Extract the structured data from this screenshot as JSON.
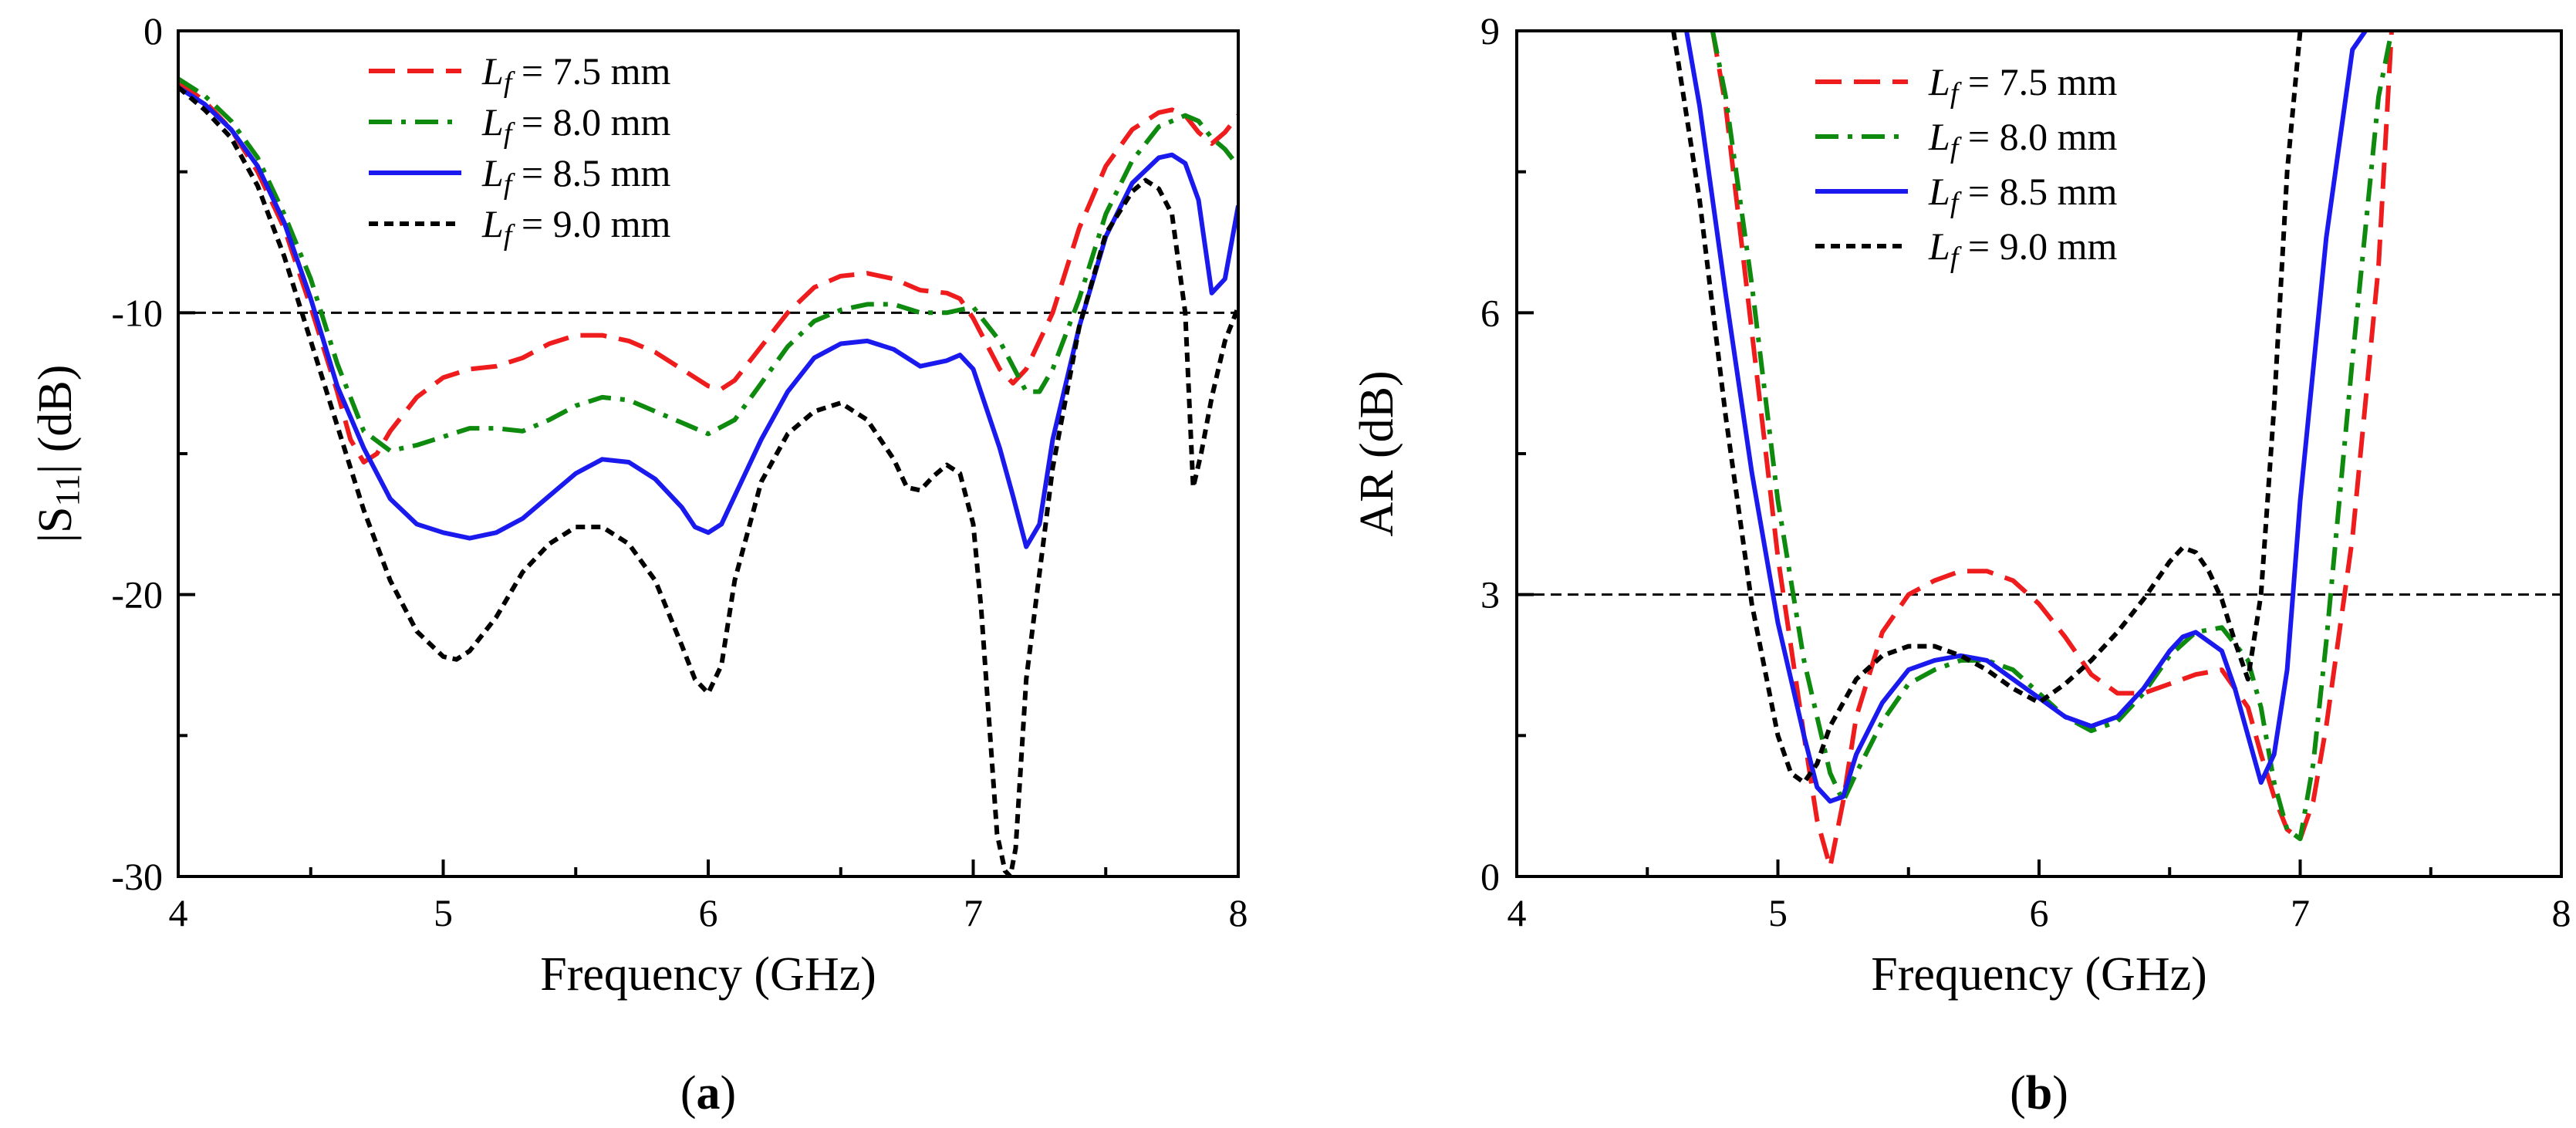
{
  "chart_data": [
    {
      "type": "line",
      "panel_label": "(a)",
      "panel_label_parts": [
        "(",
        "a",
        ")"
      ],
      "xlabel": "Frequency (GHz)",
      "ylabel": "|S11| (dB)",
      "ylabel_parts": [
        "|S",
        "11",
        "| (dB)"
      ],
      "xlim": [
        4,
        8
      ],
      "ylim": [
        -30,
        0
      ],
      "xticks": [
        4,
        5,
        6,
        7,
        8
      ],
      "yticks": [
        -30,
        -20,
        -10,
        0
      ],
      "xtick_labels": [
        "4",
        "5",
        "6",
        "7",
        "8"
      ],
      "ytick_labels": [
        "-30",
        "-20",
        "-10",
        "0"
      ],
      "reference_line": {
        "y": -10,
        "style": "dashed",
        "color": "#000000"
      },
      "legend_position": "top-center",
      "series": [
        {
          "name": "Lf = 7.5 mm",
          "legend": [
            "L",
            "f",
            " = 7.5 mm"
          ],
          "color": "#ee1c1c",
          "dash": "dashed",
          "x": [
            4.0,
            4.1,
            4.2,
            4.3,
            4.4,
            4.5,
            4.6,
            4.65,
            4.7,
            4.75,
            4.8,
            4.9,
            5.0,
            5.1,
            5.2,
            5.3,
            5.4,
            5.5,
            5.6,
            5.7,
            5.8,
            5.9,
            6.0,
            6.05,
            6.1,
            6.2,
            6.3,
            6.4,
            6.5,
            6.6,
            6.7,
            6.8,
            6.9,
            6.95,
            7.0,
            7.1,
            7.15,
            7.2,
            7.3,
            7.4,
            7.5,
            7.6,
            7.7,
            7.75,
            7.8,
            7.85,
            7.9,
            7.95,
            8.0
          ],
          "y": [
            -1.8,
            -2.5,
            -3.5,
            -5.0,
            -7.0,
            -9.8,
            -12.8,
            -14.5,
            -15.3,
            -15.0,
            -14.2,
            -13.0,
            -12.3,
            -12.0,
            -11.9,
            -11.6,
            -11.1,
            -10.8,
            -10.8,
            -11.0,
            -11.4,
            -12.0,
            -12.6,
            -12.7,
            -12.4,
            -11.2,
            -10.0,
            -9.1,
            -8.7,
            -8.6,
            -8.8,
            -9.2,
            -9.3,
            -9.5,
            -10.2,
            -12.0,
            -12.5,
            -12.0,
            -10.0,
            -7.0,
            -4.8,
            -3.5,
            -2.9,
            -2.8,
            -3.0,
            -3.6,
            -4.0,
            -3.6,
            -3.0
          ]
        },
        {
          "name": "Lf = 8.0 mm",
          "legend": [
            "L",
            "f",
            " = 8.0 mm"
          ],
          "color": "#0e8a0e",
          "dash": "dashdot",
          "x": [
            4.0,
            4.1,
            4.2,
            4.3,
            4.4,
            4.5,
            4.6,
            4.7,
            4.8,
            4.9,
            5.0,
            5.1,
            5.2,
            5.3,
            5.4,
            5.5,
            5.6,
            5.7,
            5.8,
            5.9,
            6.0,
            6.1,
            6.2,
            6.3,
            6.4,
            6.5,
            6.6,
            6.7,
            6.8,
            6.9,
            7.0,
            7.1,
            7.2,
            7.25,
            7.3,
            7.4,
            7.5,
            7.6,
            7.7,
            7.8,
            7.85,
            7.9,
            7.95,
            8.0
          ],
          "y": [
            -1.7,
            -2.3,
            -3.2,
            -4.5,
            -6.5,
            -8.8,
            -11.8,
            -14.2,
            -14.9,
            -14.7,
            -14.4,
            -14.1,
            -14.1,
            -14.2,
            -13.8,
            -13.3,
            -13.0,
            -13.1,
            -13.5,
            -13.9,
            -14.3,
            -13.8,
            -12.5,
            -11.2,
            -10.3,
            -9.9,
            -9.7,
            -9.7,
            -10.0,
            -10.0,
            -9.8,
            -11.0,
            -12.8,
            -12.8,
            -12.0,
            -9.5,
            -6.5,
            -4.6,
            -3.4,
            -3.0,
            -3.2,
            -3.8,
            -4.2,
            -4.8
          ]
        },
        {
          "name": "Lf = 8.5 mm",
          "legend": [
            "L",
            "f",
            " = 8.5 mm"
          ],
          "color": "#1a1aee",
          "dash": "solid",
          "x": [
            4.0,
            4.1,
            4.2,
            4.3,
            4.4,
            4.5,
            4.6,
            4.7,
            4.8,
            4.9,
            5.0,
            5.1,
            5.2,
            5.3,
            5.4,
            5.5,
            5.6,
            5.7,
            5.8,
            5.9,
            5.95,
            6.0,
            6.05,
            6.1,
            6.2,
            6.3,
            6.4,
            6.5,
            6.6,
            6.7,
            6.8,
            6.9,
            6.95,
            7.0,
            7.1,
            7.15,
            7.2,
            7.25,
            7.3,
            7.4,
            7.5,
            7.6,
            7.7,
            7.75,
            7.8,
            7.85,
            7.9,
            7.95,
            8.0
          ],
          "y": [
            -2.0,
            -2.6,
            -3.5,
            -4.8,
            -6.8,
            -9.5,
            -12.6,
            -14.8,
            -16.6,
            -17.5,
            -17.8,
            -18.0,
            -17.8,
            -17.3,
            -16.5,
            -15.7,
            -15.2,
            -15.3,
            -15.9,
            -16.9,
            -17.6,
            -17.8,
            -17.5,
            -16.5,
            -14.5,
            -12.8,
            -11.6,
            -11.1,
            -11.0,
            -11.3,
            -11.9,
            -11.7,
            -11.5,
            -12.0,
            -14.8,
            -16.5,
            -18.3,
            -17.5,
            -14.5,
            -10.5,
            -7.3,
            -5.4,
            -4.5,
            -4.4,
            -4.7,
            -6.0,
            -9.3,
            -8.8,
            -6.2
          ]
        },
        {
          "name": "Lf = 9.0 mm",
          "legend": [
            "L",
            "f",
            " = 9.0 mm"
          ],
          "color": "#000000",
          "dash": "dotted",
          "x": [
            4.0,
            4.1,
            4.2,
            4.3,
            4.4,
            4.5,
            4.6,
            4.7,
            4.8,
            4.9,
            5.0,
            5.05,
            5.1,
            5.2,
            5.3,
            5.4,
            5.5,
            5.6,
            5.7,
            5.8,
            5.9,
            5.95,
            6.0,
            6.05,
            6.1,
            6.2,
            6.3,
            6.4,
            6.5,
            6.6,
            6.7,
            6.75,
            6.8,
            6.85,
            6.9,
            6.95,
            7.0,
            7.03,
            7.06,
            7.09,
            7.12,
            7.14,
            7.16,
            7.2,
            7.3,
            7.4,
            7.5,
            7.6,
            7.65,
            7.7,
            7.75,
            7.8,
            7.83,
            7.86,
            7.9,
            7.95,
            8.0
          ],
          "y": [
            -2.0,
            -2.8,
            -3.8,
            -5.5,
            -8.0,
            -11.0,
            -14.0,
            -17.0,
            -19.5,
            -21.3,
            -22.2,
            -22.3,
            -22.0,
            -20.8,
            -19.2,
            -18.2,
            -17.6,
            -17.6,
            -18.2,
            -19.5,
            -21.8,
            -23.0,
            -23.5,
            -22.5,
            -19.5,
            -16.0,
            -14.3,
            -13.5,
            -13.2,
            -13.8,
            -15.2,
            -16.2,
            -16.3,
            -15.8,
            -15.4,
            -15.7,
            -17.5,
            -20.5,
            -24.5,
            -28.5,
            -29.8,
            -30.0,
            -29.0,
            -23.0,
            -15.5,
            -10.5,
            -7.2,
            -5.7,
            -5.3,
            -5.6,
            -6.5,
            -10.0,
            -16.2,
            -15.0,
            -13.0,
            -11.0,
            -9.8
          ]
        }
      ]
    },
    {
      "type": "line",
      "panel_label": "(b)",
      "panel_label_parts": [
        "(",
        "b",
        ")"
      ],
      "xlabel": "Frequency (GHz)",
      "ylabel": "AR (dB)",
      "xlim": [
        4,
        8
      ],
      "ylim": [
        0,
        9
      ],
      "xticks": [
        4,
        5,
        6,
        7,
        8
      ],
      "yticks": [
        0,
        3,
        6,
        9
      ],
      "xtick_labels": [
        "4",
        "5",
        "6",
        "7",
        "8"
      ],
      "ytick_labels": [
        "0",
        "3",
        "6",
        "9"
      ],
      "reference_line": {
        "y": 3,
        "style": "dashed",
        "color": "#000000"
      },
      "legend_position": "top-center",
      "series": [
        {
          "name": "Lf = 7.5 mm",
          "legend": [
            "L",
            "f",
            " = 7.5 mm"
          ],
          "color": "#ee1c1c",
          "dash": "dashed",
          "x": [
            4.75,
            4.8,
            4.9,
            5.0,
            5.1,
            5.15,
            5.2,
            5.25,
            5.3,
            5.4,
            5.5,
            5.6,
            5.7,
            5.8,
            5.9,
            6.0,
            6.1,
            6.2,
            6.3,
            6.4,
            6.5,
            6.6,
            6.7,
            6.8,
            6.85,
            6.9,
            6.95,
            7.0,
            7.05,
            7.1,
            7.2,
            7.3,
            7.35
          ],
          "y": [
            9.0,
            8.2,
            5.8,
            3.4,
            1.5,
            0.6,
            0.1,
            0.8,
            1.7,
            2.6,
            3.0,
            3.15,
            3.25,
            3.25,
            3.15,
            2.9,
            2.55,
            2.15,
            1.95,
            1.95,
            2.05,
            2.15,
            2.2,
            1.8,
            1.3,
            0.85,
            0.5,
            0.4,
            0.8,
            1.6,
            3.6,
            6.5,
            9.0
          ]
        },
        {
          "name": "Lf = 8.0 mm",
          "legend": [
            "L",
            "f",
            " = 8.0 mm"
          ],
          "color": "#0e8a0e",
          "dash": "dashdot",
          "x": [
            4.75,
            4.8,
            4.9,
            5.0,
            5.1,
            5.2,
            5.25,
            5.3,
            5.4,
            5.5,
            5.6,
            5.7,
            5.8,
            5.9,
            6.0,
            6.1,
            6.2,
            6.3,
            6.4,
            6.5,
            6.6,
            6.7,
            6.8,
            6.85,
            6.9,
            6.95,
            7.0,
            7.05,
            7.1,
            7.2,
            7.3,
            7.35
          ],
          "y": [
            9.0,
            8.3,
            6.3,
            4.0,
            2.3,
            1.1,
            0.8,
            1.1,
            1.65,
            2.05,
            2.2,
            2.3,
            2.3,
            2.2,
            1.95,
            1.7,
            1.55,
            1.65,
            1.95,
            2.35,
            2.6,
            2.65,
            2.3,
            1.8,
            1.0,
            0.5,
            0.4,
            1.2,
            2.5,
            5.5,
            8.3,
            9.0
          ]
        },
        {
          "name": "Lf = 8.5 mm",
          "legend": [
            "L",
            "f",
            " = 8.5 mm"
          ],
          "color": "#1a1aee",
          "dash": "solid",
          "x": [
            4.65,
            4.7,
            4.8,
            4.9,
            5.0,
            5.1,
            5.15,
            5.2,
            5.25,
            5.3,
            5.4,
            5.5,
            5.6,
            5.7,
            5.8,
            5.9,
            6.0,
            6.1,
            6.2,
            6.3,
            6.4,
            6.5,
            6.55,
            6.6,
            6.7,
            6.75,
            6.8,
            6.85,
            6.9,
            6.95,
            7.0,
            7.1,
            7.2,
            7.25
          ],
          "y": [
            9.0,
            8.2,
            6.2,
            4.3,
            2.7,
            1.5,
            0.95,
            0.8,
            0.85,
            1.3,
            1.85,
            2.2,
            2.3,
            2.35,
            2.3,
            2.1,
            1.9,
            1.7,
            1.6,
            1.7,
            2.0,
            2.4,
            2.55,
            2.6,
            2.4,
            2.0,
            1.5,
            1.0,
            1.3,
            2.2,
            4.0,
            6.8,
            8.8,
            9.0
          ]
        },
        {
          "name": "Lf = 9.0 mm",
          "legend": [
            "L",
            "f",
            " = 9.0 mm"
          ],
          "color": "#000000",
          "dash": "dotted",
          "x": [
            4.6,
            4.7,
            4.8,
            4.9,
            5.0,
            5.05,
            5.1,
            5.15,
            5.2,
            5.3,
            5.4,
            5.5,
            5.6,
            5.7,
            5.8,
            5.9,
            6.0,
            6.1,
            6.2,
            6.3,
            6.4,
            6.5,
            6.55,
            6.6,
            6.65,
            6.7,
            6.75,
            6.8,
            6.85,
            6.9,
            6.95,
            7.0
          ],
          "y": [
            9.0,
            7.2,
            4.9,
            2.9,
            1.5,
            1.1,
            1.0,
            1.2,
            1.6,
            2.1,
            2.35,
            2.45,
            2.45,
            2.35,
            2.2,
            2.0,
            1.85,
            2.05,
            2.3,
            2.6,
            2.95,
            3.35,
            3.5,
            3.45,
            3.25,
            2.95,
            2.5,
            2.1,
            3.0,
            5.0,
            7.5,
            9.0
          ]
        }
      ]
    }
  ]
}
